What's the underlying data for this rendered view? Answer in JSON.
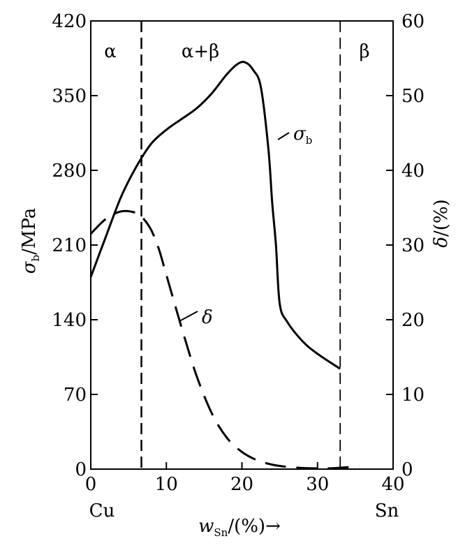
{
  "chart_data": {
    "type": "line",
    "x": {
      "label_var": "w",
      "label_sub": "Sn",
      "label_rest": "/(%)→",
      "range": [
        0,
        40
      ],
      "ticks": [
        0,
        10,
        20,
        30,
        40
      ],
      "end_labels": {
        "left": "Cu",
        "right": "Sn"
      }
    },
    "y_left": {
      "label_var": "σ",
      "label_sub": "b",
      "label_rest": "/MPa",
      "range": [
        0,
        420
      ],
      "ticks": [
        0,
        70,
        140,
        210,
        280,
        350,
        420
      ]
    },
    "y_right": {
      "label_var": "δ",
      "label_rest": "/(%)",
      "range": [
        0,
        60
      ],
      "ticks": [
        0,
        10,
        20,
        30,
        40,
        50,
        60
      ]
    },
    "phase_boundaries": [
      6.7,
      33.0
    ],
    "phase_labels": [
      "α",
      "α+β",
      "β"
    ],
    "series": [
      {
        "name": "σb",
        "label_var": "σ",
        "label_sub": "b",
        "axis": "left",
        "style": "solid",
        "x": [
          0,
          2,
          4,
          6,
          8,
          10,
          12,
          14,
          16,
          18,
          19.5,
          20.5,
          21.5,
          22.5,
          23.5,
          24.0,
          24.5,
          25.0,
          26,
          28,
          30,
          33
        ],
        "y": [
          180,
          218,
          255,
          283,
          305,
          318,
          328,
          338,
          352,
          370,
          380,
          381,
          374,
          358,
          300,
          250,
          210,
          155,
          138,
          120,
          108,
          94
        ]
      },
      {
        "name": "δ",
        "label_var": "δ",
        "axis": "right",
        "style": "dashed",
        "x": [
          0,
          2,
          4,
          6,
          7,
          8,
          9,
          10,
          12,
          14,
          16,
          18,
          20,
          22,
          24,
          26,
          28,
          30,
          32,
          34,
          35.5
        ],
        "y": [
          31.5,
          33.5,
          34.5,
          34.3,
          33.5,
          32.0,
          29.5,
          26.0,
          19.0,
          12.5,
          7.5,
          4.2,
          2.3,
          1.2,
          0.6,
          0.3,
          0.15,
          0.1,
          0.12,
          0.25,
          0.45
        ]
      }
    ]
  }
}
